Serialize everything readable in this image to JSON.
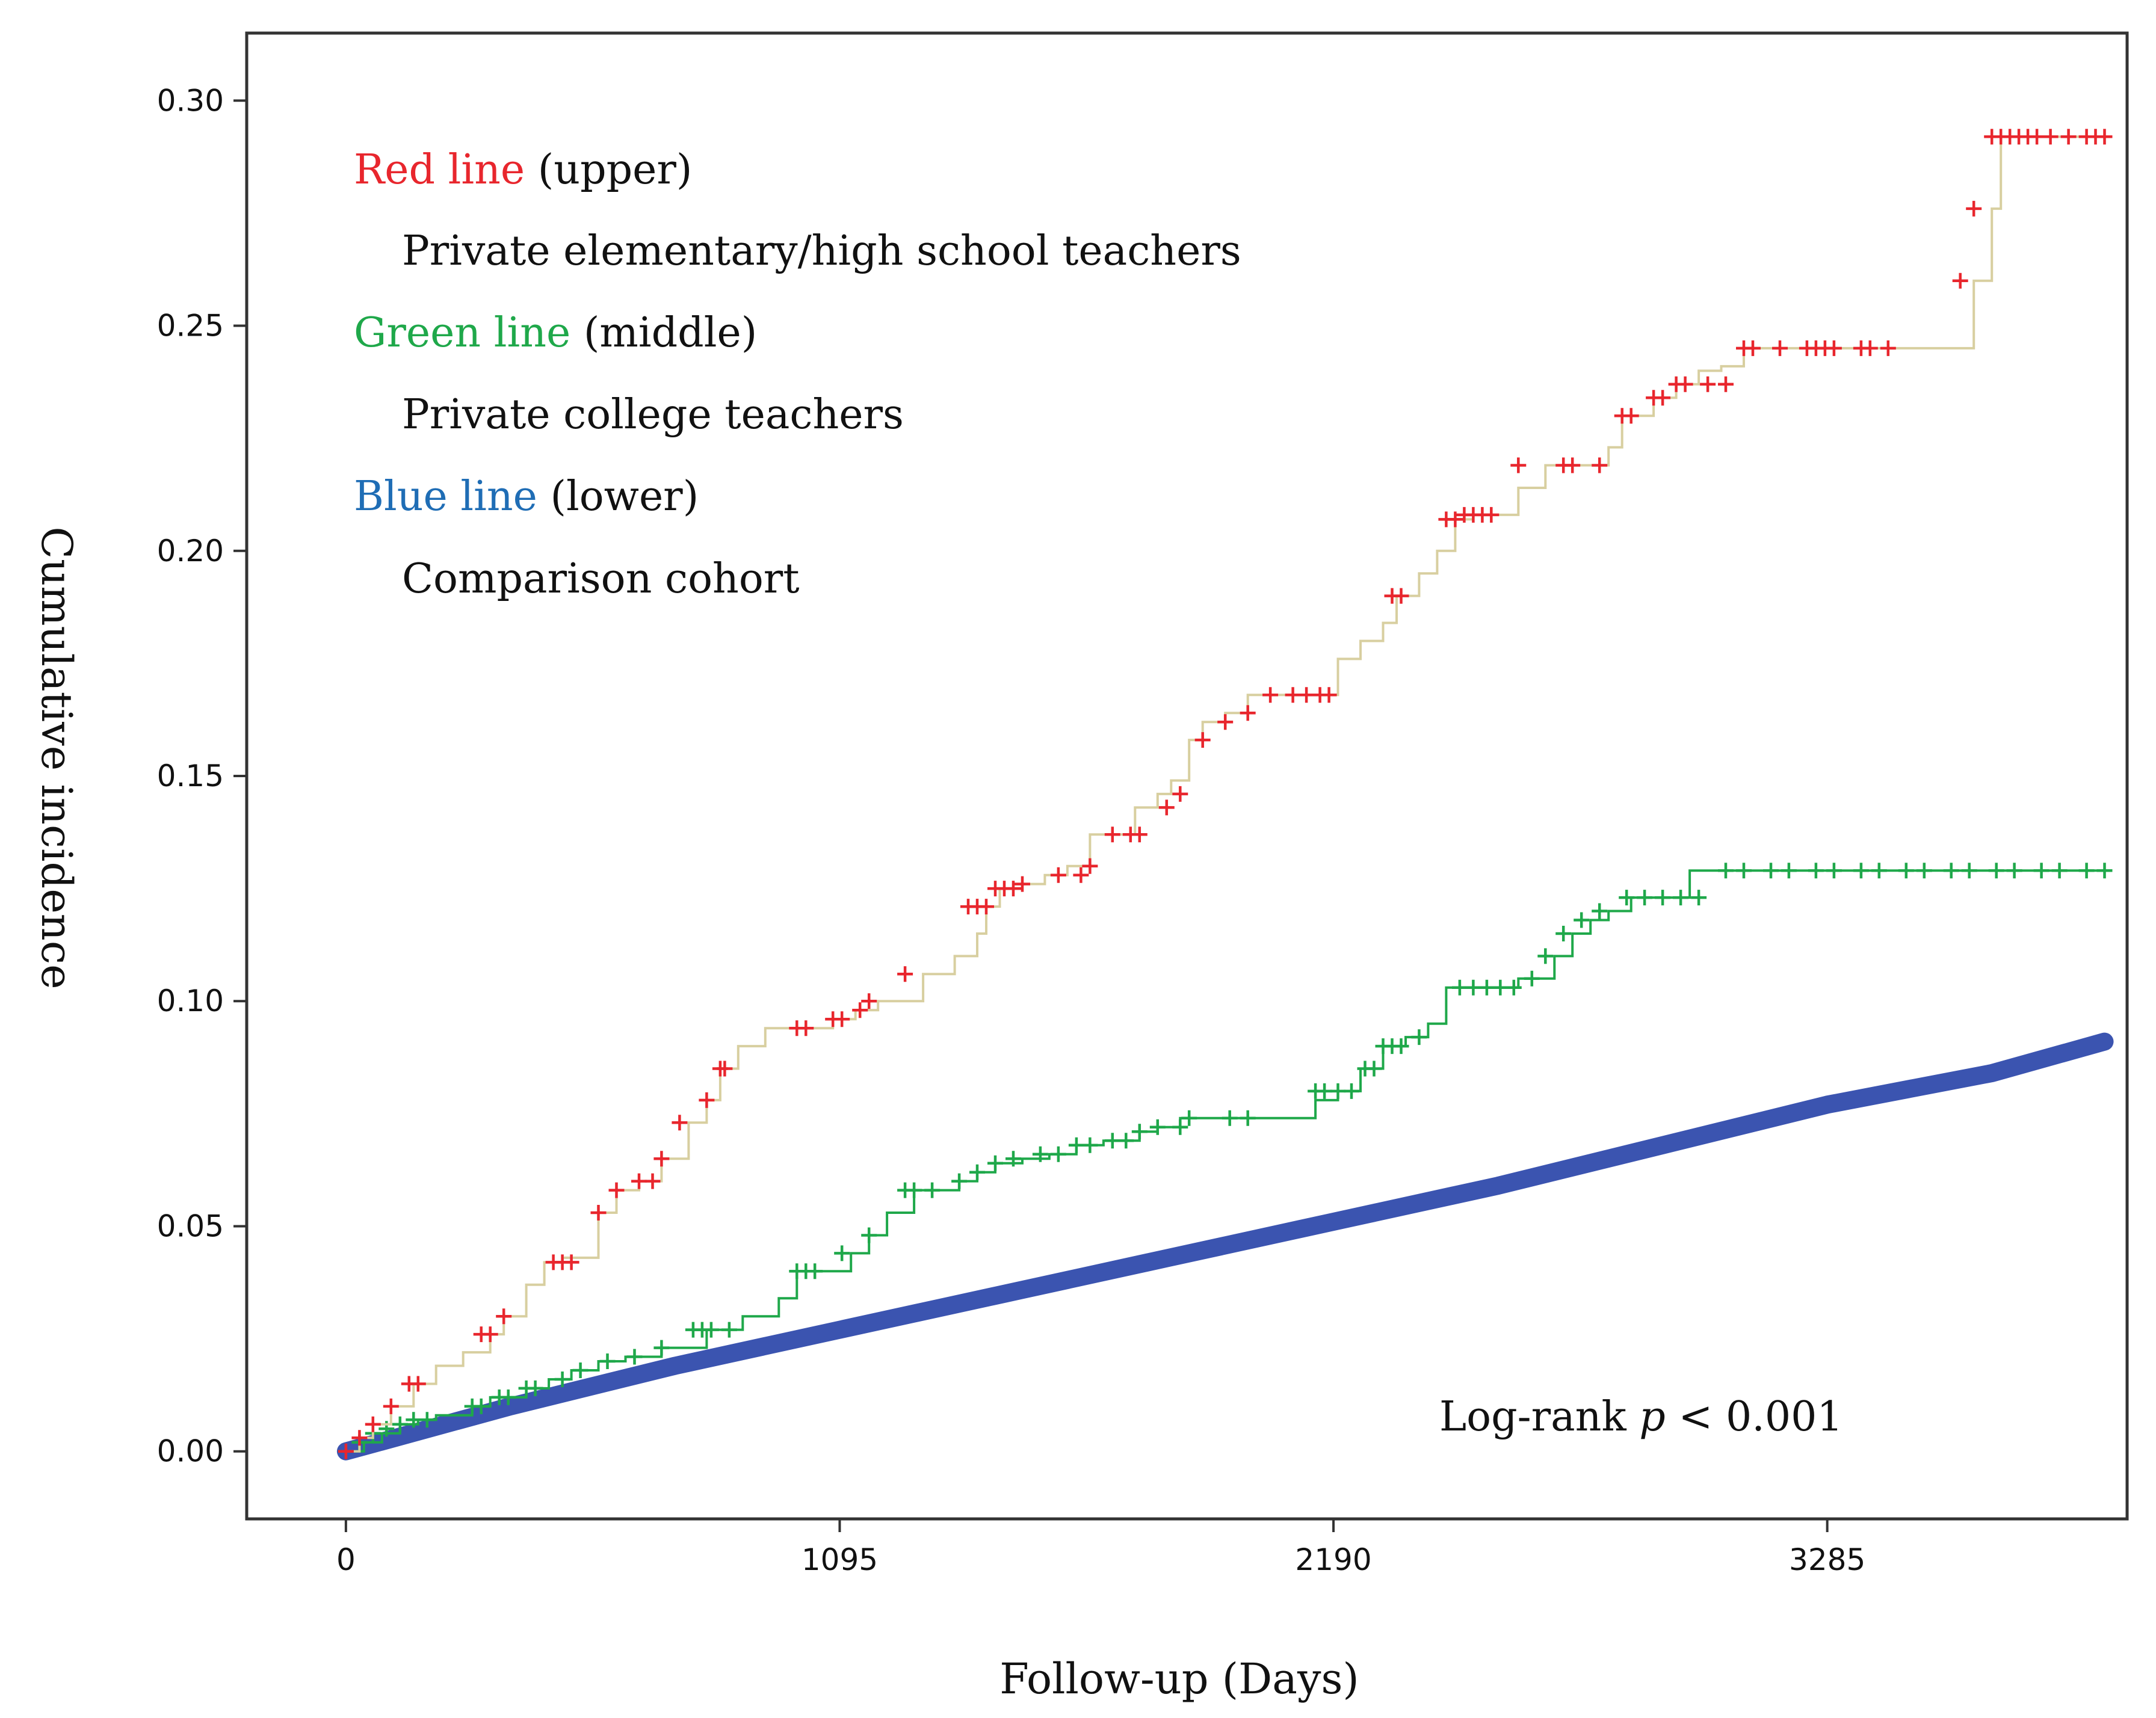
{
  "chart_data": {
    "type": "line",
    "subtype": "cumulative-incidence-step",
    "xlabel": "Follow-up (Days)",
    "ylabel": "Cumulative incidence",
    "xlim": [
      -220,
      3950
    ],
    "ylim": [
      -0.015,
      0.315
    ],
    "xticks": [
      0,
      1095,
      2190,
      3285
    ],
    "xtick_labels": [
      "0",
      "1095",
      "2190",
      "3285"
    ],
    "yticks": [
      0.0,
      0.05,
      0.1,
      0.15,
      0.2,
      0.25,
      0.3
    ],
    "ytick_labels": [
      "0.00",
      "0.05",
      "0.10",
      "0.15",
      "0.20",
      "0.25",
      "0.30"
    ],
    "annotation": {
      "prefix": "Log-rank ",
      "italic": "p",
      "suffix": " < 0.001"
    },
    "legend": [
      {
        "colored": "Red line",
        "rest": " (upper)",
        "desc": "Private elementary/high school teachers",
        "color": "#e8262d"
      },
      {
        "colored": "Green line",
        "rest": " (middle)",
        "desc": "Private college teachers",
        "color": "#1fa84a"
      },
      {
        "colored": "Blue line",
        "rest": " (lower)",
        "desc": "Comparison cohort",
        "color": "#1f6db5"
      }
    ],
    "series": [
      {
        "name": "Private elementary/high school teachers",
        "color": "#e8262d",
        "line_color": "#d8cfa0",
        "x": [
          0,
          30,
          60,
          100,
          150,
          200,
          260,
          320,
          350,
          400,
          440,
          480,
          520,
          560,
          600,
          650,
          700,
          760,
          800,
          830,
          870,
          930,
          1000,
          1080,
          1130,
          1180,
          1230,
          1280,
          1350,
          1400,
          1420,
          1450,
          1500,
          1550,
          1600,
          1650,
          1700,
          1750,
          1800,
          1830,
          1870,
          1900,
          1950,
          2000,
          2100,
          2200,
          2250,
          2300,
          2330,
          2380,
          2420,
          2460,
          2500,
          2540,
          2600,
          2660,
          2710,
          2800,
          2830,
          2900,
          2950,
          2980,
          3000,
          3050,
          3100,
          3150,
          3200,
          3300,
          3360,
          3500,
          3610,
          3650,
          3670,
          3720,
          3800,
          3850,
          3900
        ],
        "y": [
          0.0,
          0.003,
          0.006,
          0.01,
          0.015,
          0.019,
          0.022,
          0.026,
          0.03,
          0.037,
          0.042,
          0.043,
          0.043,
          0.053,
          0.058,
          0.06,
          0.065,
          0.073,
          0.078,
          0.085,
          0.09,
          0.094,
          0.094,
          0.096,
          0.098,
          0.1,
          0.1,
          0.106,
          0.11,
          0.115,
          0.121,
          0.125,
          0.126,
          0.128,
          0.13,
          0.137,
          0.137,
          0.143,
          0.146,
          0.149,
          0.158,
          0.162,
          0.164,
          0.168,
          0.168,
          0.176,
          0.18,
          0.184,
          0.19,
          0.195,
          0.2,
          0.207,
          0.208,
          0.208,
          0.214,
          0.219,
          0.219,
          0.223,
          0.23,
          0.234,
          0.237,
          0.237,
          0.24,
          0.241,
          0.245,
          0.245,
          0.245,
          0.245,
          0.245,
          0.245,
          0.26,
          0.276,
          0.292,
          0.292,
          0.292,
          0.292,
          0.292
        ],
        "censor_x": [
          0,
          30,
          60,
          100,
          140,
          160,
          300,
          320,
          350,
          460,
          480,
          500,
          560,
          600,
          650,
          680,
          700,
          740,
          800,
          830,
          840,
          1000,
          1020,
          1080,
          1100,
          1140,
          1160,
          1240,
          1380,
          1400,
          1420,
          1440,
          1460,
          1480,
          1500,
          1580,
          1630,
          1650,
          1700,
          1740,
          1760,
          1820,
          1850,
          1900,
          1950,
          2000,
          2050,
          2100,
          2130,
          2160,
          2180,
          2320,
          2340,
          2440,
          2460,
          2480,
          2500,
          2520,
          2540,
          2600,
          2700,
          2720,
          2780,
          2830,
          2850,
          2900,
          2920,
          2950,
          2970,
          3020,
          3060,
          3100,
          3120,
          3180,
          3240,
          3260,
          3280,
          3300,
          3360,
          3380,
          3420,
          3580,
          3610,
          3650,
          3670,
          3690,
          3710,
          3730,
          3750,
          3780,
          3820,
          3860,
          3880,
          3900
        ],
        "censor_y": [
          0.0,
          0.003,
          0.006,
          0.01,
          0.015,
          0.015,
          0.026,
          0.026,
          0.03,
          0.042,
          0.042,
          0.042,
          0.053,
          0.058,
          0.06,
          0.06,
          0.065,
          0.073,
          0.078,
          0.085,
          0.085,
          0.094,
          0.094,
          0.096,
          0.096,
          0.098,
          0.1,
          0.106,
          0.121,
          0.121,
          0.121,
          0.125,
          0.125,
          0.125,
          0.126,
          0.128,
          0.128,
          0.13,
          0.137,
          0.137,
          0.137,
          0.143,
          0.146,
          0.158,
          0.162,
          0.164,
          0.168,
          0.168,
          0.168,
          0.168,
          0.168,
          0.19,
          0.19,
          0.207,
          0.207,
          0.208,
          0.208,
          0.208,
          0.208,
          0.219,
          0.219,
          0.219,
          0.219,
          0.23,
          0.23,
          0.234,
          0.234,
          0.237,
          0.237,
          0.237,
          0.237,
          0.245,
          0.245,
          0.245,
          0.245,
          0.245,
          0.245,
          0.245,
          0.245,
          0.245,
          0.245,
          0.26,
          0.276,
          0.292,
          0.292,
          0.292,
          0.292,
          0.292,
          0.292,
          0.292,
          0.292,
          0.292,
          0.292,
          0.292
        ]
      },
      {
        "name": "Private college teachers",
        "color": "#1fa84a",
        "line_color": "#1fa84a",
        "x": [
          0,
          40,
          80,
          120,
          160,
          200,
          280,
          320,
          400,
          450,
          500,
          560,
          620,
          700,
          800,
          880,
          960,
          1000,
          1060,
          1120,
          1160,
          1200,
          1260,
          1300,
          1360,
          1400,
          1440,
          1500,
          1560,
          1620,
          1680,
          1760,
          1800,
          1850,
          1900,
          1950,
          2000,
          2100,
          2150,
          2200,
          2250,
          2300,
          2350,
          2400,
          2440,
          2480,
          2550,
          2600,
          2680,
          2720,
          2760,
          2800,
          2850,
          2920,
          2980,
          3020,
          3080,
          3120,
          3150,
          3200,
          3300,
          3400,
          3500,
          3600,
          3700,
          3800,
          3900
        ],
        "y": [
          0.0,
          0.002,
          0.004,
          0.006,
          0.007,
          0.008,
          0.01,
          0.012,
          0.014,
          0.016,
          0.018,
          0.02,
          0.021,
          0.023,
          0.027,
          0.03,
          0.034,
          0.04,
          0.04,
          0.044,
          0.048,
          0.053,
          0.058,
          0.058,
          0.06,
          0.062,
          0.064,
          0.065,
          0.066,
          0.068,
          0.069,
          0.071,
          0.072,
          0.074,
          0.074,
          0.074,
          0.074,
          0.074,
          0.078,
          0.08,
          0.085,
          0.09,
          0.092,
          0.095,
          0.103,
          0.103,
          0.103,
          0.105,
          0.11,
          0.115,
          0.118,
          0.12,
          0.123,
          0.123,
          0.129,
          0.129,
          0.129,
          0.129,
          0.129,
          0.129,
          0.129,
          0.129,
          0.129,
          0.129,
          0.129,
          0.129,
          0.129
        ],
        "censor_x": [
          30,
          60,
          90,
          120,
          150,
          180,
          280,
          300,
          340,
          360,
          400,
          420,
          480,
          520,
          580,
          640,
          700,
          770,
          790,
          810,
          850,
          1000,
          1020,
          1040,
          1100,
          1160,
          1240,
          1260,
          1300,
          1360,
          1400,
          1440,
          1480,
          1540,
          1580,
          1620,
          1650,
          1700,
          1730,
          1760,
          1800,
          1850,
          1870,
          1960,
          2000,
          2150,
          2170,
          2200,
          2230,
          2260,
          2280,
          2300,
          2320,
          2340,
          2380,
          2470,
          2500,
          2530,
          2560,
          2590,
          2630,
          2660,
          2700,
          2740,
          2780,
          2840,
          2880,
          2920,
          2960,
          3000,
          3060,
          3100,
          3160,
          3200,
          3260,
          3300,
          3360,
          3400,
          3460,
          3500,
          3560,
          3600,
          3660,
          3700,
          3760,
          3800,
          3860,
          3900
        ],
        "censor_y": [
          0.002,
          0.004,
          0.005,
          0.006,
          0.007,
          0.007,
          0.01,
          0.01,
          0.012,
          0.012,
          0.014,
          0.014,
          0.016,
          0.018,
          0.02,
          0.021,
          0.023,
          0.027,
          0.027,
          0.027,
          0.027,
          0.04,
          0.04,
          0.04,
          0.044,
          0.048,
          0.058,
          0.058,
          0.058,
          0.06,
          0.062,
          0.064,
          0.065,
          0.066,
          0.066,
          0.068,
          0.068,
          0.069,
          0.069,
          0.071,
          0.072,
          0.072,
          0.074,
          0.074,
          0.074,
          0.08,
          0.08,
          0.08,
          0.08,
          0.085,
          0.085,
          0.09,
          0.09,
          0.09,
          0.092,
          0.103,
          0.103,
          0.103,
          0.103,
          0.103,
          0.105,
          0.11,
          0.115,
          0.118,
          0.12,
          0.123,
          0.123,
          0.123,
          0.123,
          0.123,
          0.129,
          0.129,
          0.129,
          0.129,
          0.129,
          0.129,
          0.129,
          0.129,
          0.129,
          0.129,
          0.129,
          0.129,
          0.129,
          0.129,
          0.129,
          0.129,
          0.129,
          0.129
        ]
      },
      {
        "name": "Comparison cohort",
        "color": "#3b54b0",
        "line_color": "#3b54b0",
        "x": [
          0,
          365,
          730,
          1095,
          1460,
          1825,
          2190,
          2555,
          2920,
          3285,
          3650,
          3900
        ],
        "y": [
          0.0,
          0.01,
          0.019,
          0.027,
          0.035,
          0.043,
          0.051,
          0.059,
          0.068,
          0.077,
          0.084,
          0.091
        ]
      }
    ]
  }
}
